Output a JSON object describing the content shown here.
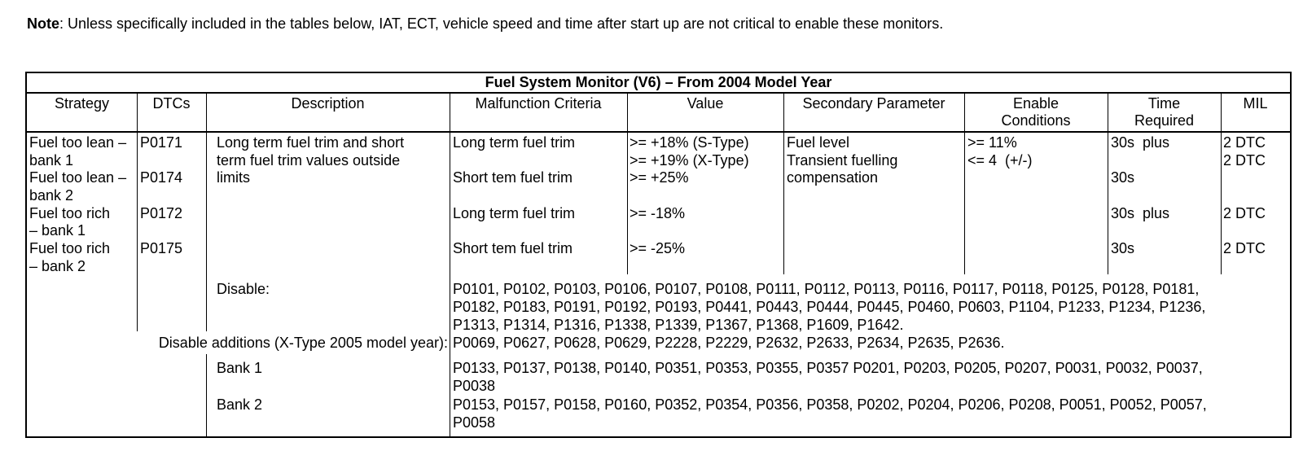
{
  "note": {
    "label": "Note",
    "text": ": Unless specifically included in the tables below, IAT, ECT, vehicle speed and time after start up are not critical to enable these monitors."
  },
  "table": {
    "title": "Fuel System Monitor (V6) – From 2004 Model Year",
    "headers": {
      "strategy": "Strategy",
      "dtcs": "DTCs",
      "description": "Description",
      "malfunction": "Malfunction Criteria",
      "value": "Value",
      "secondary": "Secondary Parameter",
      "enable": "Enable\nConditions",
      "time": "Time\nRequired",
      "mil": "MIL"
    },
    "main_row": {
      "strategy": [
        "Fuel too lean –",
        "bank 1",
        "Fuel too lean –",
        "bank 2",
        "Fuel too rich",
        "– bank 1",
        "Fuel too rich",
        "– bank 2"
      ],
      "dtcs": [
        "P0171",
        "",
        "P0174",
        "",
        "P0172",
        "",
        "P0175",
        ""
      ],
      "description": [
        "Long term fuel trim and short",
        "term fuel trim values outside",
        "limits"
      ],
      "malfunction": [
        "Long term fuel trim",
        "",
        "Short tem fuel trim",
        "",
        "Long term fuel trim",
        "",
        "Short tem fuel trim",
        ""
      ],
      "value": [
        ">= +18% (S-Type)",
        ">= +19% (X-Type)",
        ">= +25%",
        "",
        ">= -18%",
        "",
        ">= -25%",
        ""
      ],
      "secondary": [
        "Fuel level",
        "Transient fuelling",
        "compensation"
      ],
      "enable": [
        ">= 11%",
        "<= 4  (+/-)"
      ],
      "time": [
        "30s  plus",
        "",
        "30s",
        "",
        "30s  plus",
        "",
        "30s",
        ""
      ],
      "mil": [
        "2 DTC",
        "2 DTC",
        "",
        "",
        "2 DTC",
        "",
        "2 DTC",
        ""
      ]
    },
    "disable_section": {
      "label": "Disable:",
      "codes": [
        "P0101, P0102, P0103, P0106, P0107, P0108, P0111, P0112, P0113, P0116, P0117, P0118, P0125, P0128, P0181,",
        "P0182, P0183, P0191, P0192, P0193, P0441, P0443, P0444, P0445, P0460, P0603, P1104, P1233, P1234, P1236,",
        "P1313, P1314, P1316, P1338, P1339, P1367, P1368, P1609, P1642."
      ],
      "additions_label": "Disable additions (X-Type 2005 model year):",
      "additions_codes": [
        "P0069, P0627, P0628, P0629, P2228, P2229, P2632, P2633, P2634, P2635, P2636."
      ],
      "bank1_label": "Bank 1",
      "bank1_codes": [
        "P0133, P0137, P0138, P0140, P0351, P0353, P0355, P0357 P0201, P0203, P0205, P0207, P0031, P0032, P0037,",
        "P0038"
      ],
      "bank2_label": "Bank 2",
      "bank2_codes": [
        "P0153, P0157, P0158, P0160, P0352, P0354, P0356, P0358, P0202, P0204, P0206, P0208, P0051, P0052, P0057,",
        "P0058"
      ]
    }
  }
}
